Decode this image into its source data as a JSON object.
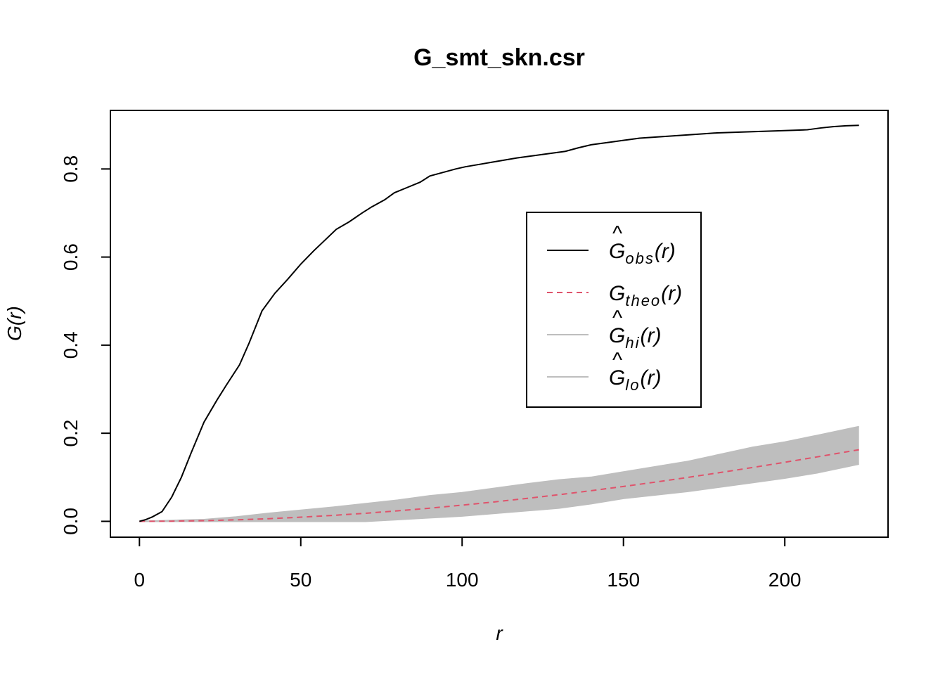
{
  "chart_data": {
    "type": "line",
    "title": "G_smt_skn.csr",
    "xlabel": "r",
    "ylabel": "G(r)",
    "xlim": [
      -9,
      232
    ],
    "ylim": [
      -0.036,
      0.933
    ],
    "x_ticks": [
      0,
      50,
      100,
      150,
      200
    ],
    "x_tick_labels": [
      "0",
      "50",
      "100",
      "150",
      "200"
    ],
    "y_ticks": [
      0.0,
      0.2,
      0.4,
      0.6,
      0.8
    ],
    "y_tick_labels": [
      "0.0",
      "0.2",
      "0.4",
      "0.6",
      "0.8"
    ],
    "grid": false,
    "legend_position": "center-right",
    "legend": [
      {
        "base": "G",
        "hat": "^",
        "sub": "obs",
        "arg": "(r)",
        "color": "#000000",
        "dash": "solid"
      },
      {
        "base": "G",
        "hat": "",
        "sub": "theo",
        "arg": "(r)",
        "color": "#DF536B",
        "dash": "dashed"
      },
      {
        "base": "G",
        "hat": "^",
        "sub": "hi",
        "arg": "(r)",
        "color": "#BEBEBE",
        "dash": "solid"
      },
      {
        "base": "G",
        "hat": "^",
        "sub": "lo",
        "arg": "(r)",
        "color": "#BEBEBE",
        "dash": "solid"
      }
    ],
    "series": [
      {
        "name": "obs",
        "color": "#000000",
        "x": [
          0,
          2,
          4,
          7,
          10,
          13,
          16,
          20,
          24,
          27,
          31,
          34,
          38,
          42,
          46,
          50,
          54,
          57,
          61,
          65,
          69,
          72,
          76,
          79,
          83,
          87,
          90,
          94,
          98,
          101,
          105,
          109,
          113,
          117,
          121,
          124,
          128,
          132,
          136,
          140,
          143,
          147,
          151,
          155,
          159,
          163,
          167,
          171,
          175,
          179,
          183,
          187,
          191,
          195,
          199,
          203,
          207,
          211,
          215,
          219,
          223
        ],
        "y": [
          0.0,
          0.004,
          0.01,
          0.022,
          0.055,
          0.1,
          0.155,
          0.225,
          0.275,
          0.31,
          0.355,
          0.405,
          0.478,
          0.518,
          0.55,
          0.584,
          0.614,
          0.635,
          0.663,
          0.68,
          0.7,
          0.714,
          0.73,
          0.746,
          0.758,
          0.77,
          0.784,
          0.792,
          0.8,
          0.805,
          0.81,
          0.815,
          0.82,
          0.825,
          0.829,
          0.832,
          0.836,
          0.84,
          0.848,
          0.855,
          0.858,
          0.862,
          0.866,
          0.87,
          0.872,
          0.874,
          0.876,
          0.878,
          0.88,
          0.882,
          0.883,
          0.884,
          0.885,
          0.886,
          0.887,
          0.888,
          0.889,
          0.893,
          0.896,
          0.898,
          0.899
        ]
      },
      {
        "name": "theo",
        "color": "#DF536B",
        "x": [
          0,
          10,
          20,
          30,
          40,
          50,
          60,
          70,
          80,
          90,
          100,
          110,
          120,
          130,
          140,
          150,
          160,
          170,
          180,
          190,
          200,
          210,
          223
        ],
        "y": [
          0.0,
          0.0004,
          0.0015,
          0.0034,
          0.006,
          0.0094,
          0.0135,
          0.0183,
          0.0238,
          0.0299,
          0.0367,
          0.0441,
          0.052,
          0.0605,
          0.0696,
          0.0792,
          0.0892,
          0.0998,
          0.1108,
          0.1222,
          0.1341,
          0.1463,
          0.1626
        ]
      },
      {
        "name": "hi",
        "color": "#BEBEBE",
        "x": [
          0,
          10,
          20,
          30,
          40,
          50,
          60,
          70,
          80,
          90,
          100,
          110,
          120,
          130,
          140,
          150,
          160,
          170,
          180,
          190,
          200,
          210,
          223
        ],
        "y": [
          0.0,
          0.002,
          0.004,
          0.01,
          0.018,
          0.025,
          0.032,
          0.04,
          0.048,
          0.058,
          0.065,
          0.075,
          0.085,
          0.094,
          0.1,
          0.112,
          0.124,
          0.136,
          0.152,
          0.168,
          0.18,
          0.195,
          0.215
        ]
      },
      {
        "name": "lo",
        "color": "#BEBEBE",
        "x": [
          0,
          10,
          20,
          30,
          40,
          50,
          60,
          70,
          80,
          90,
          100,
          110,
          120,
          130,
          140,
          150,
          160,
          170,
          180,
          190,
          200,
          210,
          223
        ],
        "y": [
          0.0,
          0.0,
          0.0,
          0.0,
          0.0,
          0.0,
          0.0,
          0.0,
          0.004,
          0.008,
          0.012,
          0.018,
          0.024,
          0.03,
          0.04,
          0.052,
          0.06,
          0.068,
          0.078,
          0.088,
          0.098,
          0.11,
          0.13
        ]
      }
    ]
  }
}
